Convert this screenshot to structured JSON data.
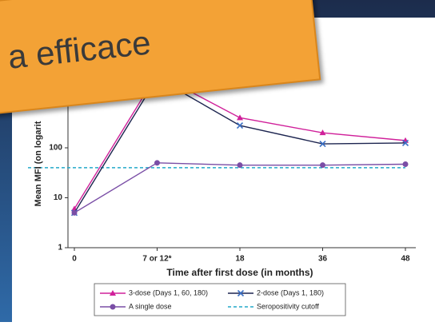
{
  "banner": {
    "text": "a efficace"
  },
  "chart_data": {
    "type": "line",
    "y_label": "Mean MFI (on logarit",
    "x_label": "Time after first dose (in months)",
    "categories": [
      "0",
      "7 or 12*",
      "18",
      "36",
      "48"
    ],
    "log_scale": true,
    "ylim": [
      1,
      10000
    ],
    "yticks": [
      1,
      10,
      100
    ],
    "series": [
      {
        "name": "3-dose (Days 1, 60, 180)",
        "color": "#d0209a",
        "marker": "triangle",
        "values": [
          6,
          3000,
          400,
          200,
          140
        ]
      },
      {
        "name": "2-dose (Days 1, 180)",
        "color": "#1d2550",
        "marker": "x",
        "values": [
          5,
          2500,
          280,
          120,
          125
        ]
      },
      {
        "name": "A single dose",
        "color": "#7a4ea6",
        "marker": "circle",
        "values": [
          5,
          50,
          45,
          45,
          47
        ]
      }
    ],
    "cutoff": {
      "name": "Seropositivity cutoff",
      "color": "#23a9c9",
      "value": 40
    }
  }
}
